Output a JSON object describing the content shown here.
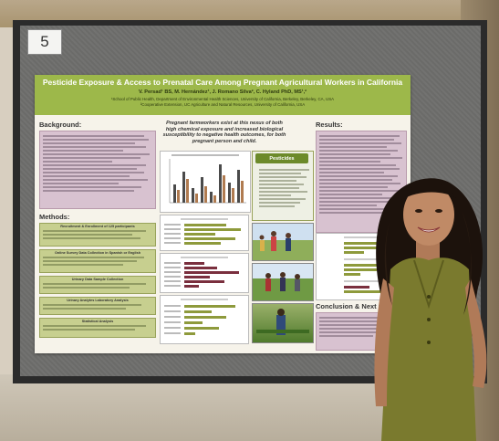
{
  "booth": {
    "number": "5"
  },
  "poster": {
    "title": "Pesticide Exposure & Access to Prenatal Care Among Pregnant Agricultural Workers in California",
    "authors": "V. Persad¹ BS, M. Hernández¹, J. Romano Silva², C. Hyland PhD, MS¹,²",
    "affiliation_1": "¹School of Public Health, Department of Environmental Health Sciences, University of California, Berkeley, Berkeley, CA, USA",
    "affiliation_2": "²Cooperative Extension, UC Agriculture and Natural Resources, University of California, USA",
    "background_heading": "Background:",
    "methods_heading": "Methods:",
    "results_heading": "Results:",
    "conclusion_heading": "Conclusion & Next Steps:",
    "center_statement": "Pregnant farmworkers exist at this nexus of both high chemical exposure and increased biological susceptibility to negative health outcomes, for both pregnant person and child.",
    "pesticides_tag": "Pesticides",
    "methods_steps": [
      "Recruitment & Enrollment of 125 participants",
      "Online Survey Data Collection in Spanish or English",
      "Urinary Data Sample Collection",
      "Urinary Analytes Laboratory Analysis",
      "Statistical Analysis"
    ]
  },
  "colors": {
    "poster_header": "#9db84a",
    "background_box": "#d8c2d0",
    "methods_box": "#c7cf8f",
    "board": "#6e6e6c",
    "dress": "#7a7a2e"
  }
}
